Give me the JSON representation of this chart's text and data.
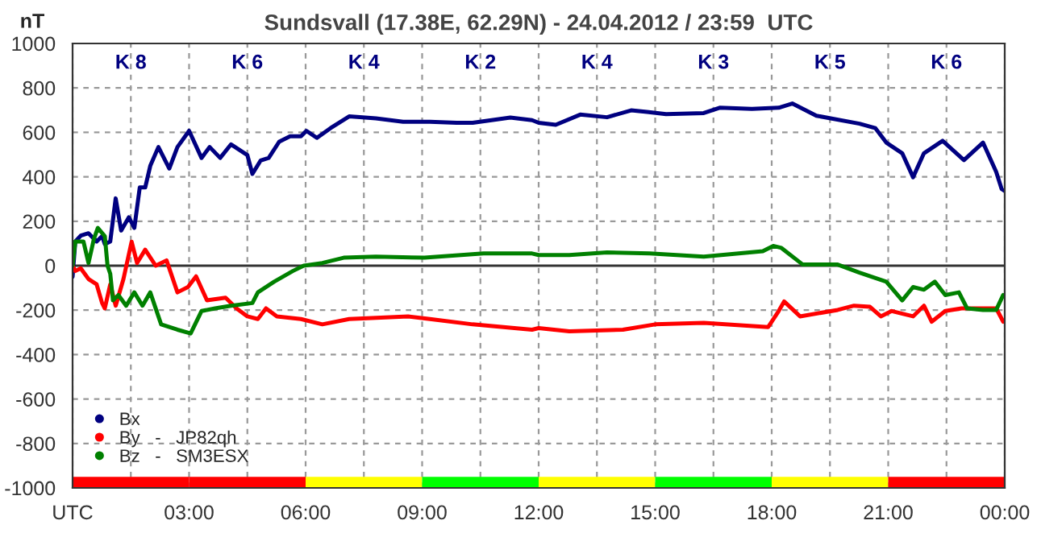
{
  "chart_data": {
    "type": "line",
    "title": "Sundsvall (17.38E, 62.29N) - 24.04.2012 / 23:59  UTC",
    "ylabel": "nT",
    "xlim": [
      0,
      24
    ],
    "ylim": [
      -1000,
      1000
    ],
    "xticks": [
      {
        "value": 0,
        "label": "UTC"
      },
      {
        "value": 1.5,
        "label": null
      },
      {
        "value": 3,
        "label": "03:00"
      },
      {
        "value": 4.5,
        "label": null
      },
      {
        "value": 6,
        "label": "06:00"
      },
      {
        "value": 7.5,
        "label": null
      },
      {
        "value": 9,
        "label": "09:00"
      },
      {
        "value": 10.5,
        "label": null
      },
      {
        "value": 12,
        "label": "12:00"
      },
      {
        "value": 13.5,
        "label": null
      },
      {
        "value": 15,
        "label": "15:00"
      },
      {
        "value": 16.5,
        "label": null
      },
      {
        "value": 18,
        "label": "18:00"
      },
      {
        "value": 19.5,
        "label": null
      },
      {
        "value": 21,
        "label": "21:00"
      },
      {
        "value": 22.5,
        "label": null
      },
      {
        "value": 24,
        "label": "00:00"
      }
    ],
    "yticks": [
      -1000,
      -800,
      -600,
      -400,
      -200,
      0,
      200,
      400,
      600,
      800,
      1000
    ],
    "grid": true,
    "legend": "bottom left",
    "marker": "none",
    "line_style": "solid",
    "series": [
      {
        "type": "bar",
        "x": [
          1.5,
          4.5,
          7.5,
          10.5,
          13.5,
          16.5,
          19.5,
          22.5
        ],
        "values": [
          50,
          50,
          50,
          50,
          50,
          50,
          50,
          50
        ],
        "base": [
          -1000,
          -1000,
          -1000,
          -1000,
          -1000,
          -1000,
          -1000,
          -1000
        ],
        "colors": [
          "#ff0000",
          "#ff0000",
          "#ffff00",
          "#00ff00",
          "#ffff00",
          "#00ff00",
          "#ffff00",
          "#ff0000"
        ]
      },
      {
        "name": "Bx",
        "color": "#000080",
        "x": [
          0,
          0.07,
          0.21,
          0.41,
          0.62,
          0.76,
          0.83,
          0.97,
          1.11,
          1.25,
          1.45,
          1.59,
          1.73,
          1.87,
          2.0,
          2.21,
          2.49,
          2.7,
          3.0,
          3.32,
          3.53,
          3.8,
          4.08,
          4.5,
          4.63,
          4.84,
          5.05,
          5.32,
          5.6,
          5.88,
          6.02,
          6.29,
          6.64,
          7.12,
          7.81,
          8.51,
          9.2,
          9.89,
          10.3,
          11.27,
          11.83,
          12.0,
          12.44,
          13.07,
          13.76,
          14.38,
          14.79,
          15.28,
          16.25,
          16.66,
          17.49,
          18.18,
          18.53,
          19.15,
          20.26,
          20.67,
          20.95,
          21.36,
          21.64,
          21.92,
          22.4,
          22.95,
          23.44,
          23.78,
          23.92,
          23.99
        ],
        "values": [
          -50,
          109,
          135,
          146,
          109,
          133,
          97,
          109,
          303,
          158,
          218,
          170,
          352,
          352,
          449,
          534,
          437,
          534,
          607,
          485,
          534,
          485,
          546,
          498,
          413,
          473,
          485,
          558,
          582,
          582,
          607,
          575,
          619,
          672,
          663,
          648,
          648,
          643,
          643,
          667,
          655,
          643,
          634,
          680,
          668,
          699,
          692,
          682,
          687,
          711,
          706,
          711,
          730,
          675,
          639,
          619,
          554,
          506,
          398,
          506,
          562,
          475,
          554,
          422,
          345,
          337
        ]
      },
      {
        "name": "By   -   JP82qh",
        "color": "#ff0000",
        "x": [
          0,
          0.07,
          0.21,
          0.41,
          0.62,
          0.76,
          0.83,
          0.97,
          1.11,
          1.31,
          1.52,
          1.66,
          1.87,
          2.14,
          2.42,
          2.7,
          2.97,
          3.18,
          3.46,
          3.94,
          4.22,
          4.5,
          4.77,
          4.98,
          5.26,
          5.88,
          6.43,
          7.12,
          8.64,
          9.2,
          10.3,
          11.83,
          12.0,
          12.79,
          14.17,
          15.0,
          16.25,
          17.91,
          18.18,
          18.32,
          18.73,
          19.7,
          20.12,
          20.53,
          20.81,
          21.09,
          21.64,
          21.92,
          22.12,
          22.47,
          22.89,
          23.44,
          23.78,
          23.96
        ],
        "values": [
          0,
          -24,
          -12,
          -60,
          -84,
          -168,
          -192,
          -84,
          -180,
          -60,
          108,
          12,
          72,
          0,
          24,
          -120,
          -96,
          -48,
          -156,
          -144,
          -192,
          -228,
          -240,
          -192,
          -228,
          -240,
          -264,
          -240,
          -228,
          -240,
          -264,
          -288,
          -281,
          -295,
          -288,
          -264,
          -257,
          -276,
          -204,
          -161,
          -228,
          -199,
          -180,
          -185,
          -228,
          -204,
          -228,
          -180,
          -252,
          -204,
          -192,
          -192,
          -192,
          -252
        ]
      },
      {
        "name": "Bz   -   SM3ESX",
        "color": "#008000",
        "x": [
          0,
          0.07,
          0.28,
          0.41,
          0.55,
          0.65,
          0.83,
          0.9,
          0.97,
          1.04,
          1.18,
          1.38,
          1.59,
          1.8,
          2.0,
          2.28,
          2.7,
          3.04,
          3.32,
          3.67,
          4.08,
          4.63,
          4.77,
          5.19,
          5.67,
          5.95,
          6.43,
          6.98,
          7.81,
          9.06,
          10.58,
          11.83,
          12.0,
          12.79,
          13.76,
          14.86,
          16.25,
          17.77,
          18.04,
          18.25,
          18.8,
          19.7,
          20.26,
          20.95,
          21.36,
          21.64,
          21.92,
          22.2,
          22.47,
          22.82,
          23.03,
          23.44,
          23.78,
          23.96
        ],
        "values": [
          0,
          109,
          109,
          12,
          121,
          170,
          133,
          0,
          -36,
          -156,
          -132,
          -180,
          -120,
          -180,
          -120,
          -264,
          -288,
          -305,
          -204,
          -192,
          -180,
          -168,
          -120,
          -72,
          -24,
          0,
          12,
          36,
          41,
          36,
          55,
          55,
          48,
          48,
          60,
          55,
          41,
          65,
          89,
          80,
          5,
          5,
          -31,
          -72,
          -156,
          -96,
          -108,
          -72,
          -132,
          -120,
          -192,
          -199,
          -199,
          -132
        ]
      }
    ],
    "annotations": [
      "K 8",
      "K 6",
      "K 4",
      "K 2",
      "K 4",
      "K 3",
      "K 5",
      "K 6"
    ]
  }
}
